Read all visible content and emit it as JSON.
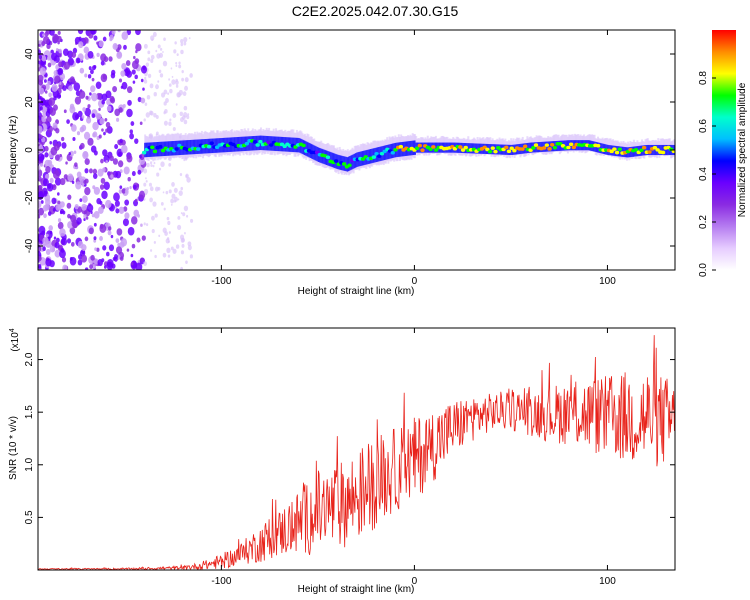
{
  "figure_title": "C2E2.2025.042.07.30.G15",
  "chart_data": [
    {
      "type": "heatmap",
      "title": "C2E2.2025.042.07.30.G15",
      "xlabel": "Height of straight line (km)",
      "ylabel": "Frequency (Hz)",
      "xlim": [
        -195,
        135
      ],
      "ylim": [
        -50,
        50
      ],
      "x_ticks": [
        -100,
        0,
        100
      ],
      "x_tick_labels": [
        "-100",
        "0",
        "100"
      ],
      "y_ticks": [
        -40,
        -20,
        0,
        20,
        40
      ],
      "y_tick_labels": [
        "-40",
        "-20",
        "0",
        "20",
        "40"
      ],
      "grid": false,
      "colorbar": {
        "label": "Normalized spectral amplitude",
        "range": [
          0,
          1
        ],
        "ticks": [
          0.0,
          0.2,
          0.4,
          0.6,
          0.8
        ],
        "tick_labels": [
          "0.0",
          "0.2",
          "0.4",
          "0.6",
          "0.8"
        ],
        "colormap": [
          "#ffffff",
          "#e6ccff",
          "#b57cf0",
          "#8a2be2",
          "#6a00ff",
          "#0000ff",
          "#00bfff",
          "#00ffcc",
          "#00ff00",
          "#ffff00",
          "#ff8c00",
          "#ff0000"
        ]
      },
      "features": {
        "noise_region_x": [
          -195,
          -115
        ],
        "signal_x": [
          -140,
          135
        ],
        "centerline": {
          "x": [
            -140,
            -120,
            -100,
            -80,
            -60,
            -50,
            -40,
            -35,
            -30,
            -20,
            -10,
            0,
            20,
            50,
            60,
            80,
            90,
            100,
            110,
            120,
            135
          ],
          "y": [
            0,
            1,
            2,
            3,
            2,
            -2,
            -5,
            -6,
            -4,
            -2,
            0,
            1,
            1,
            0,
            1,
            2,
            2,
            0,
            -1,
            0,
            0
          ]
        }
      }
    },
    {
      "type": "line",
      "xlabel": "Height of straight line (km)",
      "ylabel": "SNR (10 * v/v)",
      "y_multiplier": "(x10",
      "y_multiplier_exp": "4",
      "xlim": [
        -195,
        135
      ],
      "ylim": [
        0,
        2.3
      ],
      "x_ticks": [
        -100,
        0,
        100
      ],
      "x_tick_labels": [
        "-100",
        "0",
        "100"
      ],
      "y_ticks": [
        0.5,
        1.0,
        1.5,
        2.0
      ],
      "y_tick_labels": [
        "0.5",
        "1.0",
        "1.5",
        "2.0"
      ],
      "grid": false,
      "series": [
        {
          "color": "#e8221a",
          "envelope": {
            "x": [
              -195,
              -150,
              -120,
              -110,
              -100,
              -90,
              -80,
              -70,
              -60,
              -50,
              -40,
              -30,
              -20,
              -10,
              0,
              10,
              20,
              30,
              40,
              50,
              60,
              70,
              80,
              90,
              100,
              110,
              120,
              135
            ],
            "mean": [
              0.01,
              0.01,
              0.02,
              0.04,
              0.08,
              0.15,
              0.25,
              0.35,
              0.45,
              0.55,
              0.6,
              0.7,
              0.85,
              0.95,
              1.05,
              1.2,
              1.35,
              1.45,
              1.5,
              1.52,
              1.5,
              1.48,
              1.5,
              1.48,
              1.45,
              1.45,
              1.45,
              1.4
            ],
            "spread": [
              0.005,
              0.01,
              0.02,
              0.04,
              0.08,
              0.12,
              0.2,
              0.25,
              0.35,
              0.45,
              0.45,
              0.5,
              0.5,
              0.45,
              0.45,
              0.4,
              0.3,
              0.25,
              0.2,
              0.22,
              0.25,
              0.3,
              0.35,
              0.4,
              0.45,
              0.5,
              0.55,
              0.45
            ]
          }
        }
      ]
    }
  ]
}
